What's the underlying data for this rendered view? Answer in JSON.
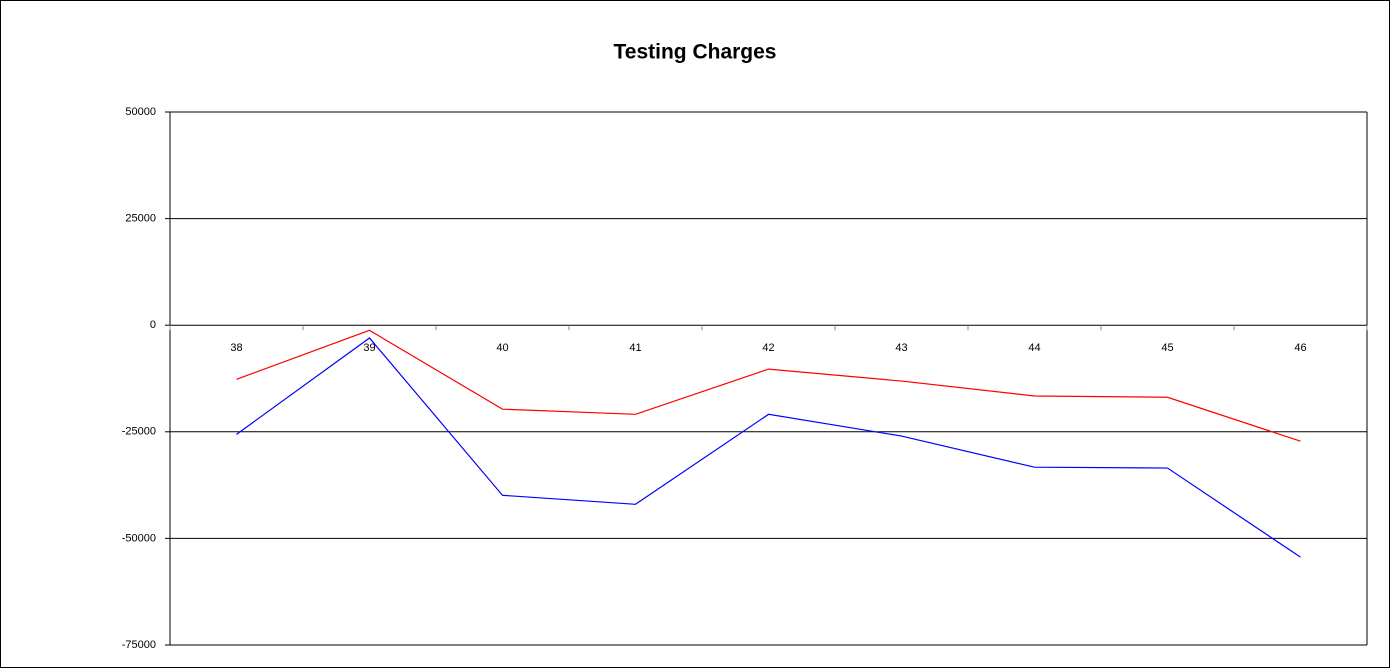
{
  "chart_data": {
    "type": "line",
    "title": "Testing Charges",
    "categories": [
      "38",
      "39",
      "40",
      "41",
      "42",
      "43",
      "44",
      "45",
      "46"
    ],
    "series": [
      {
        "color": "#ff0000",
        "values": [
          -12700,
          -1200,
          -19700,
          -20900,
          -10300,
          -13100,
          -16600,
          -16900,
          -27200
        ]
      },
      {
        "color": "#0000ff",
        "values": [
          -25600,
          -3000,
          -39900,
          -42000,
          -20900,
          -26000,
          -33300,
          -33500,
          -54400
        ]
      }
    ],
    "ylim": [
      -75000,
      50000
    ],
    "yticks": [
      -75000,
      -50000,
      -25000,
      0,
      25000,
      50000
    ],
    "grid": true
  }
}
